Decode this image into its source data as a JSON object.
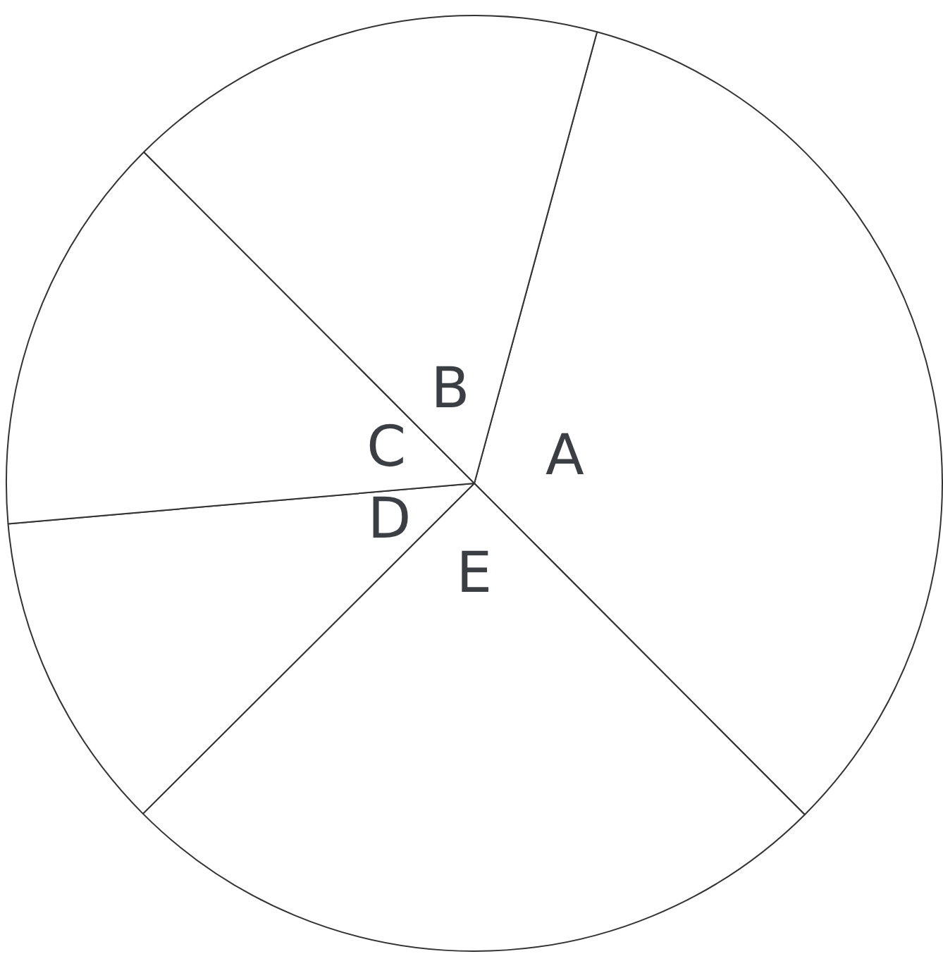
{
  "chart_data": {
    "type": "pie",
    "categories": [
      "A",
      "E",
      "D",
      "C",
      "B"
    ],
    "values": [
      33.3,
      25,
      11.1,
      13.9,
      16.7
    ],
    "colors": [
      "#ffffff",
      "#ffffff",
      "#ffffff",
      "#ffffff",
      "#ffffff"
    ],
    "legend": false
  }
}
